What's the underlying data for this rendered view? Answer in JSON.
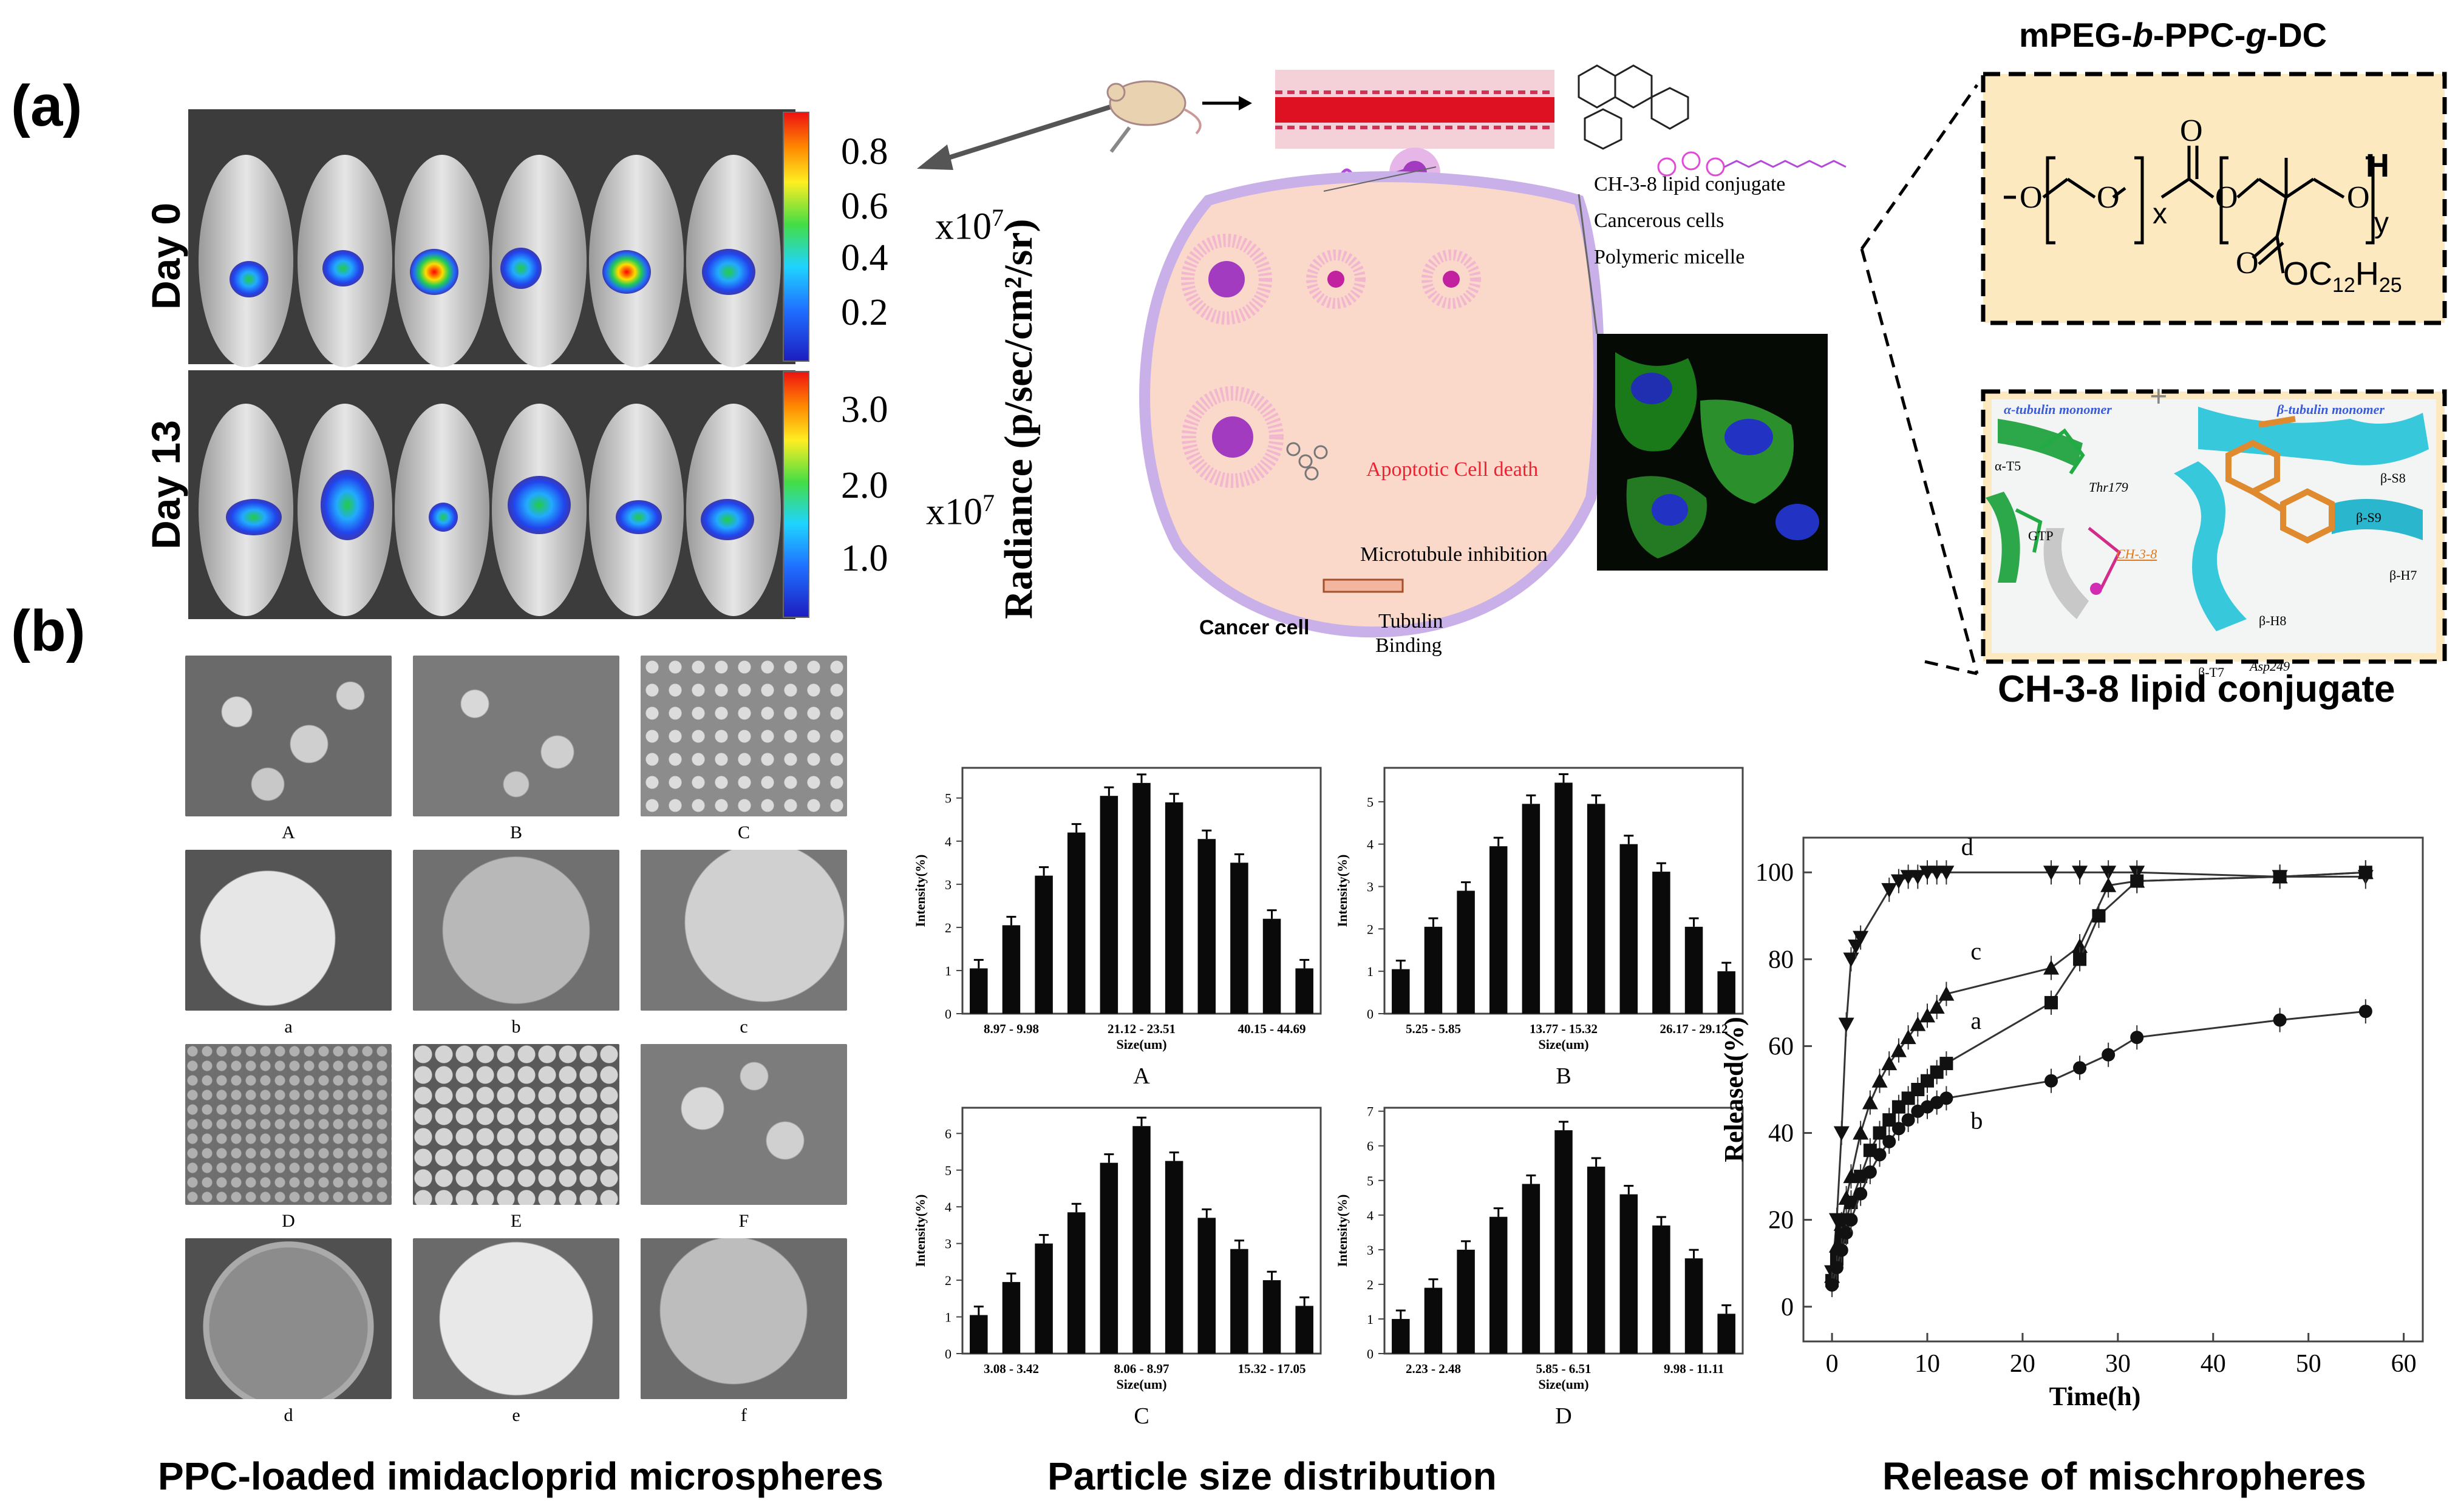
{
  "panel_labels": {
    "a": "(a)",
    "b": "(b)"
  },
  "imaging": {
    "rows": [
      {
        "label": "Day 0",
        "scale_ticks": [
          "0.8",
          "0.6",
          "0.4",
          "0.2"
        ],
        "multiplier": "x10",
        "exponent": "7"
      },
      {
        "label": "Day 13",
        "scale_ticks": [
          "3.0",
          "2.0",
          "1.0"
        ],
        "multiplier": "x10",
        "exponent": "7"
      }
    ],
    "radiance_label": "Radiance (p/sec/cm²/sr)"
  },
  "schematic": {
    "legend": [
      "CH-3-8 lipid conjugate",
      "Cancerous cells",
      "Polymeric micelle"
    ],
    "labels": {
      "apoptotic": "Apoptotic Cell death",
      "microtubule": "Microtubule inhibition",
      "tubulin": "Tubulin",
      "binding": "Binding",
      "cancer_cell": "Cancer cell"
    }
  },
  "polymer": {
    "title_parts": [
      "mPEG-",
      "b",
      "-PPC-",
      "g",
      "-DC"
    ],
    "structure_text": {
      "x": "x",
      "y": "y",
      "h": "H",
      "o_ester": "OC",
      "c_sub": "12",
      "h_label": "H",
      "h_sub": "25"
    },
    "plus": "+",
    "docking_labels": [
      "α-tubulin monomer",
      "β-tubulin monomer",
      "α-T5",
      "Thr179",
      "GTP",
      "CH-3-8",
      "β-S8",
      "β-S9",
      "β-H7",
      "β-H8",
      "β-T7",
      "Asp249"
    ],
    "docking_caption": "CH-3-8 lipid conjugate"
  },
  "sem": {
    "row_labels": [
      [
        "A",
        "B",
        "C"
      ],
      [
        "a",
        "b",
        "c"
      ],
      [
        "D",
        "E",
        "F"
      ],
      [
        "d",
        "e",
        "f"
      ]
    ],
    "caption": "PPC-loaded imidacloprid microspheres"
  },
  "size_dist": {
    "caption": "Particle size distribution",
    "ylabel": "Intensity(%)",
    "xlabel": "Size(um)"
  },
  "release": {
    "caption": "Release of mischropheres"
  },
  "chart_data": [
    {
      "type": "bar",
      "name": "A",
      "values": [
        1.05,
        2.05,
        3.2,
        4.2,
        5.05,
        5.35,
        4.9,
        4.05,
        3.5,
        2.2,
        1.05
      ],
      "tick_labels": [
        "8.97 - 9.98",
        "21.12 - 23.51",
        "40.15 - 44.69"
      ],
      "yticks": [
        0,
        1,
        2,
        3,
        4,
        5
      ],
      "ylim": [
        0,
        5.7
      ],
      "xlabel": "Size(um)",
      "ylabel": "Intensity(%)"
    },
    {
      "type": "bar",
      "name": "B",
      "values": [
        1.05,
        2.05,
        2.9,
        3.95,
        4.95,
        5.45,
        4.95,
        4.0,
        3.35,
        2.05,
        1.0
      ],
      "tick_labels": [
        "5.25 - 5.85",
        "13.77 - 15.32",
        "26.17 - 29.12"
      ],
      "yticks": [
        0,
        1,
        2,
        3,
        4,
        5
      ],
      "ylim": [
        0,
        5.8
      ],
      "xlabel": "Size(um)",
      "ylabel": "Intensity(%)"
    },
    {
      "type": "bar",
      "name": "C",
      "values": [
        1.05,
        1.95,
        3.0,
        3.85,
        5.2,
        6.2,
        5.25,
        3.7,
        2.85,
        2.0,
        1.3
      ],
      "tick_labels": [
        "3.08 - 3.42",
        "8.06 - 8.97",
        "15.32 - 17.05"
      ],
      "yticks": [
        0,
        1,
        2,
        3,
        4,
        5,
        6
      ],
      "ylim": [
        0,
        6.7
      ],
      "xlabel": "Size(um)",
      "ylabel": "Intensity(%)"
    },
    {
      "type": "bar",
      "name": "D",
      "values": [
        1.0,
        1.9,
        3.0,
        3.95,
        4.9,
        6.45,
        5.4,
        4.6,
        3.7,
        2.75,
        1.15
      ],
      "tick_labels": [
        "2.23 - 2.48",
        "5.85 - 6.51",
        "9.98 - 11.11"
      ],
      "yticks": [
        0,
        1,
        2,
        3,
        4,
        5,
        6,
        7
      ],
      "ylim": [
        0,
        7.1
      ],
      "xlabel": "Size(um)",
      "ylabel": "Intensity(%)"
    },
    {
      "type": "line",
      "xlabel": "Time(h)",
      "ylabel": "Released(%)",
      "xlim": [
        -3,
        62
      ],
      "ylim": [
        -8,
        108
      ],
      "xticks": [
        0,
        10,
        20,
        30,
        40,
        50,
        60
      ],
      "yticks": [
        0,
        20,
        40,
        60,
        80,
        100
      ],
      "series": [
        {
          "name": "d",
          "marker": "triangle-down",
          "x": [
            0,
            0.5,
            1,
            1.5,
            2,
            2.5,
            3,
            6,
            7,
            8,
            9,
            10,
            11,
            12,
            23,
            26,
            29,
            32,
            47,
            56
          ],
          "y": [
            8,
            20,
            40,
            65,
            80,
            83,
            85,
            96,
            98,
            99,
            99,
            100,
            100,
            100,
            100,
            100,
            100,
            100,
            99,
            99
          ]
        },
        {
          "name": "c",
          "marker": "triangle-up",
          "x": [
            0,
            0.5,
            1,
            1.5,
            2,
            3,
            4,
            5,
            6,
            7,
            8,
            9,
            10,
            11,
            12,
            23,
            26,
            29,
            32,
            47,
            56
          ],
          "y": [
            7,
            14,
            19,
            25,
            30,
            40,
            47,
            52,
            56,
            59,
            62,
            65,
            67,
            69,
            72,
            78,
            83,
            97,
            98,
            99,
            100
          ]
        },
        {
          "name": "a",
          "marker": "square",
          "x": [
            0,
            0.5,
            1,
            1.5,
            2,
            3,
            4,
            5,
            6,
            7,
            8,
            9,
            10,
            11,
            12,
            23,
            26,
            28,
            32,
            47,
            56
          ],
          "y": [
            6,
            11,
            16,
            20,
            24,
            30,
            36,
            40,
            43,
            46,
            48,
            50,
            52,
            54,
            56,
            70,
            80,
            90,
            98,
            99,
            100
          ]
        },
        {
          "name": "b",
          "marker": "circle",
          "x": [
            0,
            0.5,
            1,
            1.5,
            2,
            3,
            4,
            5,
            6,
            7,
            8,
            9,
            10,
            11,
            12,
            23,
            26,
            29,
            32,
            47,
            56
          ],
          "y": [
            5,
            9,
            13,
            17,
            20,
            26,
            31,
            35,
            38,
            41,
            43,
            45,
            46,
            47,
            48,
            52,
            55,
            58,
            62,
            66,
            68
          ]
        }
      ]
    }
  ]
}
